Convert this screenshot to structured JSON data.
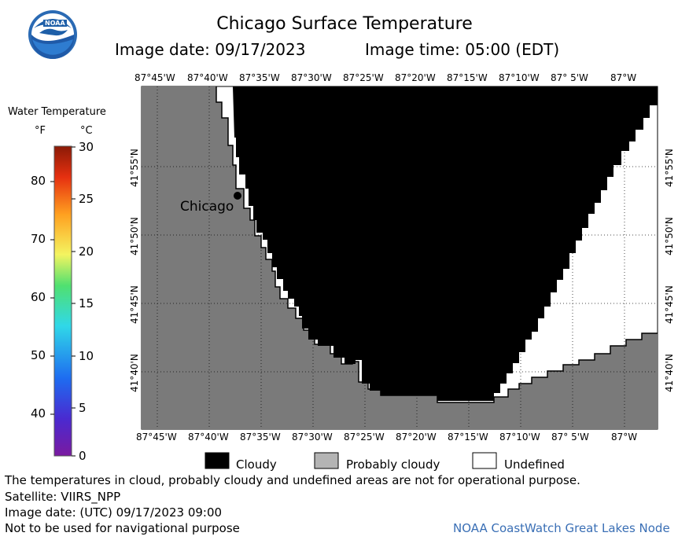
{
  "header": {
    "title": "Chicago Surface Temperature",
    "image_date": "Image date: 09/17/2023",
    "image_time": "Image time: 05:00 (EDT)",
    "logo_text": "NOAA"
  },
  "colorbar": {
    "title": "Water Temperature",
    "unit_f": "°F",
    "unit_c": "°C",
    "f_ticks": [
      "80",
      "70",
      "60",
      "50",
      "40"
    ],
    "c_ticks": [
      "30",
      "25",
      "20",
      "15",
      "10",
      "5",
      "0"
    ]
  },
  "map": {
    "lon_labels_top": [
      "87°45'W",
      "87°40'W",
      "87°35'W",
      "87°30'W",
      "87°25'W",
      "87°20'W",
      "87°15'W",
      "87°10'W",
      "87° 5'W",
      "87°W"
    ],
    "lon_labels_bottom": [
      "87°45'W",
      "87°40'W",
      "87°35'W",
      "87°30'W",
      "87°25'W",
      "87°20'W",
      "87°15'W",
      "87°10'W",
      "87° 5'W",
      "87°W"
    ],
    "lat_labels": [
      "41°55'N",
      "41°50'N",
      "41°45'N",
      "41°40'N"
    ],
    "city_label": "Chicago",
    "colors": {
      "land": "#7a7a7a",
      "cloudy": "#000000",
      "probably_cloudy": "#b4b4b4",
      "undefined": "#ffffff"
    }
  },
  "legend": {
    "items": [
      {
        "label": "Cloudy",
        "color": "#000000"
      },
      {
        "label": "Probably cloudy",
        "color": "#b4b4b4"
      },
      {
        "label": "Undefined",
        "color": "#ffffff"
      }
    ]
  },
  "footer": {
    "disclaimer": "The temperatures in cloud, probably cloudy and undefined areas are not for operational purpose.",
    "satellite": "Satellite: VIIRS_NPP",
    "utc_date": "Image date: (UTC) 09/17/2023  09:00",
    "nav_warning": "Not to be used for navigational purpose",
    "credit": "NOAA CoastWatch Great Lakes Node"
  }
}
